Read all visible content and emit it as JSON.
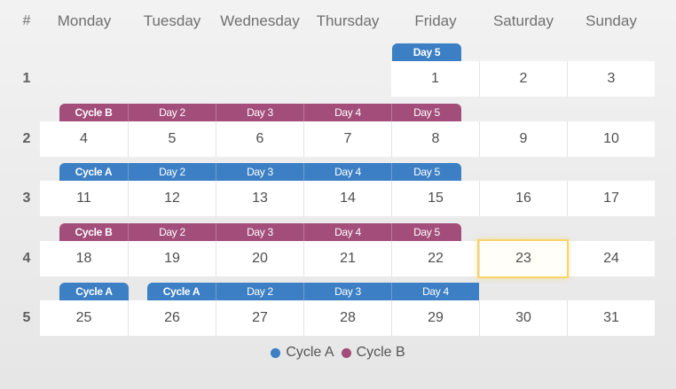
{
  "header": {
    "num": "#",
    "days": [
      "Monday",
      "Tuesday",
      "Wednesday",
      "Thursday",
      "Friday",
      "Saturday",
      "Sunday"
    ]
  },
  "colors": {
    "cycleA": "#3c7fc4",
    "cycleB": "#a24d7a",
    "today_border": "#f6d46a"
  },
  "weeks": [
    {
      "num": "1",
      "days": [
        "",
        "",
        "",
        "",
        "1",
        "2",
        "3"
      ],
      "tags": [
        {
          "col": 4,
          "label": "Day 5",
          "cycle": "A",
          "start": true,
          "end": true
        }
      ]
    },
    {
      "num": "2",
      "days": [
        "4",
        "5",
        "6",
        "7",
        "8",
        "9",
        "10"
      ],
      "tags": [
        {
          "col": 0,
          "label": "Cycle B",
          "cycle": "B",
          "start": true,
          "end": false
        },
        {
          "col": 1,
          "label": "Day 2",
          "cycle": "B",
          "start": false,
          "end": false
        },
        {
          "col": 2,
          "label": "Day 3",
          "cycle": "B",
          "start": false,
          "end": false
        },
        {
          "col": 3,
          "label": "Day 4",
          "cycle": "B",
          "start": false,
          "end": false
        },
        {
          "col": 4,
          "label": "Day 5",
          "cycle": "B",
          "start": false,
          "end": true
        }
      ]
    },
    {
      "num": "3",
      "days": [
        "11",
        "12",
        "13",
        "14",
        "15",
        "16",
        "17"
      ],
      "tags": [
        {
          "col": 0,
          "label": "Cycle A",
          "cycle": "A",
          "start": true,
          "end": false
        },
        {
          "col": 1,
          "label": "Day 2",
          "cycle": "A",
          "start": false,
          "end": false
        },
        {
          "col": 2,
          "label": "Day 3",
          "cycle": "A",
          "start": false,
          "end": false
        },
        {
          "col": 3,
          "label": "Day 4",
          "cycle": "A",
          "start": false,
          "end": false
        },
        {
          "col": 4,
          "label": "Day 5",
          "cycle": "A",
          "start": false,
          "end": true
        }
      ]
    },
    {
      "num": "4",
      "days": [
        "18",
        "19",
        "20",
        "21",
        "22",
        "23",
        "24"
      ],
      "today_col": 5,
      "tags": [
        {
          "col": 0,
          "label": "Cycle B",
          "cycle": "B",
          "start": true,
          "end": false
        },
        {
          "col": 1,
          "label": "Day 2",
          "cycle": "B",
          "start": false,
          "end": false
        },
        {
          "col": 2,
          "label": "Day 3",
          "cycle": "B",
          "start": false,
          "end": false
        },
        {
          "col": 3,
          "label": "Day 4",
          "cycle": "B",
          "start": false,
          "end": false
        },
        {
          "col": 4,
          "label": "Day 5",
          "cycle": "B",
          "start": false,
          "end": true
        }
      ]
    },
    {
      "num": "5",
      "days": [
        "25",
        "26",
        "27",
        "28",
        "29",
        "30",
        "31"
      ],
      "tags": [
        {
          "col": 0,
          "label": "Cycle A",
          "cycle": "A",
          "start": true,
          "end": true
        },
        {
          "col": 1,
          "label": "Cycle A",
          "cycle": "A",
          "start": true,
          "end": false
        },
        {
          "col": 2,
          "label": "Day 2",
          "cycle": "A",
          "start": false,
          "end": false
        },
        {
          "col": 3,
          "label": "Day 3",
          "cycle": "A",
          "start": false,
          "end": false
        },
        {
          "col": 4,
          "label": "Day 4",
          "cycle": "A",
          "start": false,
          "end": false
        }
      ]
    }
  ],
  "legend": [
    {
      "label": "Cycle A",
      "cycle": "A"
    },
    {
      "label": "Cycle B",
      "cycle": "B"
    }
  ]
}
